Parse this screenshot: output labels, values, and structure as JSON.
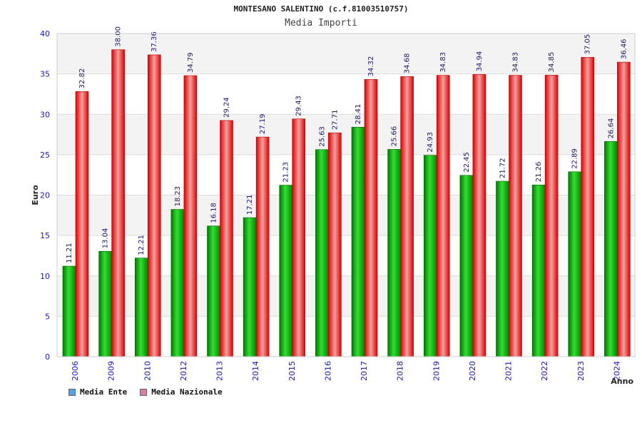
{
  "chart_data": {
    "type": "bar",
    "title": "MONTESANO SALENTINO (c.f.81003510757)",
    "subtitle": "Media Importi",
    "ylabel": "Euro",
    "xlabel": "Anno",
    "ylim": [
      0,
      40
    ],
    "yticks": [
      0,
      5,
      10,
      15,
      20,
      25,
      30,
      35,
      40
    ],
    "grid": true,
    "legend_position": "bottom-left",
    "categories": [
      "2006",
      "2009",
      "2010",
      "2012",
      "2013",
      "2014",
      "2015",
      "2016",
      "2017",
      "2018",
      "2019",
      "2020",
      "2021",
      "2022",
      "2023",
      "2024"
    ],
    "series": [
      {
        "name": "Media Ente",
        "color": "#00aa00",
        "legend_color": "#5aa0e6",
        "values": [
          11.21,
          13.04,
          12.21,
          18.23,
          16.18,
          17.21,
          21.23,
          25.63,
          28.41,
          25.66,
          24.93,
          22.45,
          21.72,
          21.26,
          22.89,
          26.64
        ],
        "labels": [
          "11.21",
          "13.04",
          "12.21",
          "18.23",
          "16.18",
          "17.21",
          "21.23",
          "25.63",
          "28.41",
          "25.66",
          "24.93",
          "22.45",
          "21.72",
          "21.26",
          "22.89",
          "26.64"
        ]
      },
      {
        "name": "Media Nazionale",
        "color": "#ee1111",
        "legend_color": "#d47fa6",
        "values": [
          32.82,
          38.0,
          37.36,
          34.79,
          29.24,
          27.19,
          29.43,
          27.71,
          34.32,
          34.68,
          34.83,
          34.94,
          34.83,
          34.85,
          37.05,
          36.46
        ],
        "labels": [
          "32.82",
          "38.00",
          "37.36",
          "34.79",
          "29.24",
          "27.19",
          "29.43",
          "27.71",
          "34.32",
          "34.68",
          "34.83",
          "34.94",
          "34.83",
          "34.85",
          "37.05",
          "36.46"
        ]
      }
    ]
  }
}
